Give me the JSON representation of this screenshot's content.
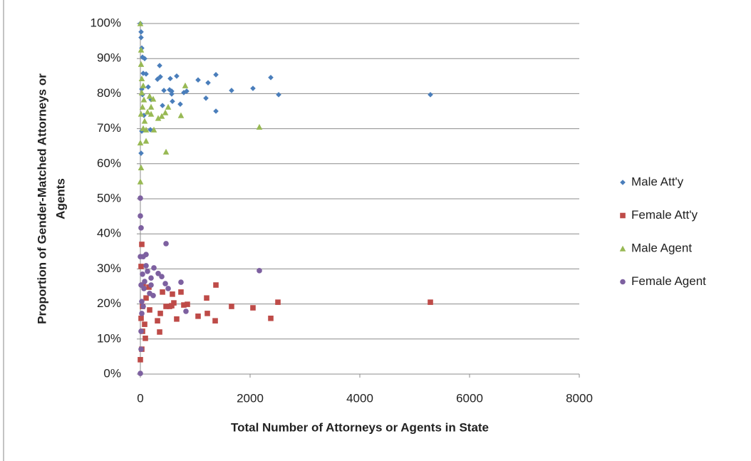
{
  "chart_data": {
    "type": "scatter",
    "x_label": "Total Number of Attorneys or Agents in State",
    "y_label": [
      "Proportion of Gender-Matched Attorneys or",
      "Agents"
    ],
    "xlim": [
      0,
      8000
    ],
    "xticks": [
      0,
      2000,
      4000,
      6000,
      8000
    ],
    "ylim": [
      0,
      100
    ],
    "yticks": [
      {
        "value": 0,
        "label": "0%"
      },
      {
        "value": 10,
        "label": "10%"
      },
      {
        "value": 20,
        "label": "20%"
      },
      {
        "value": 30,
        "label": "30%"
      },
      {
        "value": 40,
        "label": "40%"
      },
      {
        "value": 50,
        "label": "50%"
      },
      {
        "value": 60,
        "label": "60%"
      },
      {
        "value": 70,
        "label": "70%"
      },
      {
        "value": 80,
        "label": "80%"
      },
      {
        "value": 90,
        "label": "90%"
      },
      {
        "value": 100,
        "label": "100%"
      }
    ],
    "grid": true,
    "legend": "right",
    "series": [
      {
        "name": "Male Att'y",
        "color": "#4a7ebb",
        "marker": "diamond",
        "x": [
          5286,
          2520,
          2377,
          2052,
          1662,
          1377,
          1377,
          1234,
          1195,
          1052,
          844,
          792,
          727,
          662,
          571,
          545,
          571,
          584,
          532,
          429,
          364,
          351,
          312,
          403,
          195,
          182,
          143,
          104,
          78,
          26,
          13,
          39,
          26,
          13,
          65,
          39,
          26,
          52,
          13,
          0
        ],
        "values": [
          79.7,
          79.7,
          84.6,
          81.5,
          80.9,
          85.4,
          75,
          83.1,
          78.7,
          83.9,
          80.7,
          80.3,
          77,
          85,
          80.7,
          84.3,
          79.9,
          77.8,
          81.1,
          80.9,
          84.8,
          88,
          84.1,
          76.6,
          78.3,
          69.7,
          81.9,
          85.6,
          90,
          93,
          96,
          90.4,
          69.3,
          63,
          73.8,
          79.7,
          81.3,
          85.8,
          97.6,
          100
        ]
      },
      {
        "name": "Female Att'y",
        "color": "#be4b48",
        "marker": "square",
        "x": [
          5286,
          2507,
          2377,
          2052,
          1662,
          1377,
          1364,
          1221,
          1208,
          1052,
          857,
          792,
          740,
          662,
          610,
          571,
          584,
          532,
          468,
          403,
          351,
          364,
          312,
          169,
          156,
          104,
          91,
          39,
          13,
          26,
          26,
          0,
          52,
          39,
          13,
          78
        ],
        "values": [
          20.5,
          20.5,
          15.9,
          18.9,
          19.3,
          25.4,
          15.2,
          17.3,
          21.7,
          16.5,
          19.9,
          19.7,
          23.4,
          15.7,
          20.3,
          19.5,
          22.8,
          19.3,
          19.3,
          23.4,
          12,
          17.3,
          15.2,
          18.3,
          24.8,
          21.7,
          10.2,
          12.2,
          30.7,
          37,
          7.1,
          4.1,
          25.4,
          19.3,
          15.9,
          14.2
        ]
      },
      {
        "name": "Male Agent",
        "color": "#98b954",
        "marker": "triangle",
        "x": [
          2169,
          818,
          740,
          468,
          507,
          455,
          390,
          325,
          247,
          195,
          195,
          169,
          130,
          104,
          104,
          78,
          65,
          52,
          39,
          26,
          13,
          13,
          0,
          0,
          13,
          0,
          13,
          26,
          52,
          234
        ],
        "values": [
          70.5,
          82.3,
          73.8,
          63.4,
          76.2,
          74.6,
          73.6,
          73,
          69.7,
          76.2,
          74.2,
          79.3,
          74.8,
          66.5,
          69.7,
          72.2,
          78.3,
          82.3,
          76.2,
          84.3,
          88.4,
          92.5,
          100,
          54.9,
          58.9,
          66,
          74.2,
          80.3,
          70.1,
          78.5
        ]
      },
      {
        "name": "Female Agent",
        "color": "#7d60a0",
        "marker": "circle",
        "x": [
          2169,
          468,
          740,
          831,
          507,
          455,
          390,
          325,
          247,
          195,
          195,
          169,
          130,
          104,
          104,
          78,
          65,
          52,
          39,
          26,
          13,
          13,
          0,
          0,
          13,
          0,
          13,
          26,
          52,
          234,
          0
        ],
        "values": [
          29.5,
          37.2,
          26.2,
          17.9,
          24.4,
          25.8,
          27.8,
          28.7,
          30.3,
          25.4,
          27.4,
          23,
          29.3,
          34.1,
          30.9,
          26.4,
          24.4,
          19.3,
          28.5,
          17.3,
          12.2,
          7.1,
          0.2,
          45.1,
          41.7,
          33.5,
          25.4,
          20.7,
          33.5,
          22.4,
          50.2
        ]
      }
    ]
  }
}
